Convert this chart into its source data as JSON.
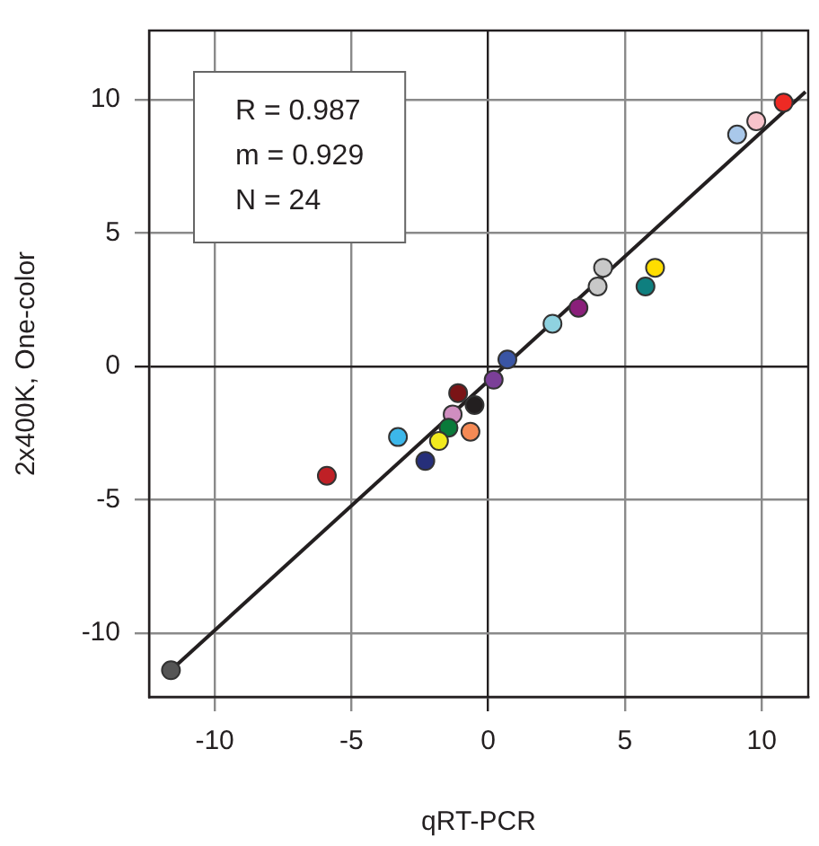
{
  "chart_data": {
    "type": "scatter",
    "xlabel": "qRT-PCR",
    "ylabel": "2x400K, One-color",
    "annotations": [
      "R = 0.987",
      "m = 0.929",
      "N = 24"
    ],
    "xlim": [
      -12.4,
      11.7
    ],
    "ylim": [
      -12.4,
      12.6
    ],
    "xticks": [
      -10,
      -5,
      0,
      5,
      10
    ],
    "yticks": [
      -10,
      -5,
      0,
      5,
      10
    ],
    "grid": true,
    "marker": "circle",
    "series": [
      {
        "x": [
          10.8,
          9.8,
          9.1,
          6.1,
          5.75,
          4.2,
          4.0,
          3.3,
          2.35,
          0.7,
          0.2,
          -1.1,
          -0.5,
          -1.3,
          -1.45,
          -0.65,
          -1.8,
          -3.3,
          -2.3,
          -5.9,
          -11.6
        ],
        "values": [
          9.9,
          9.2,
          8.7,
          3.7,
          3.0,
          3.7,
          3.0,
          2.2,
          1.6,
          0.26,
          -0.5,
          -1.0,
          -1.45,
          -1.8,
          -2.3,
          -2.45,
          -2.8,
          -2.65,
          -3.55,
          -4.1,
          -11.4
        ],
        "colors": [
          "#ee2a24",
          "#f7c3cb",
          "#a9c8ea",
          "#ffdd00",
          "#0f7f7f",
          "#c8c8c8",
          "#c8c8c8",
          "#8a1f7a",
          "#8fd2e0",
          "#3a55a4",
          "#7b3f98",
          "#7a1416",
          "#231f20",
          "#d08ec0",
          "#0a7a3a",
          "#f58a55",
          "#f2ea1e",
          "#3cb7ea",
          "#262f7a",
          "#bf2026",
          "#555555"
        ]
      },
      {
        "type": "line",
        "x": [
          -11.6,
          11.6
        ],
        "values": [
          -11.4,
          10.3
        ],
        "color": "#231f20",
        "marker": "none",
        "line_style": "solid"
      }
    ]
  }
}
